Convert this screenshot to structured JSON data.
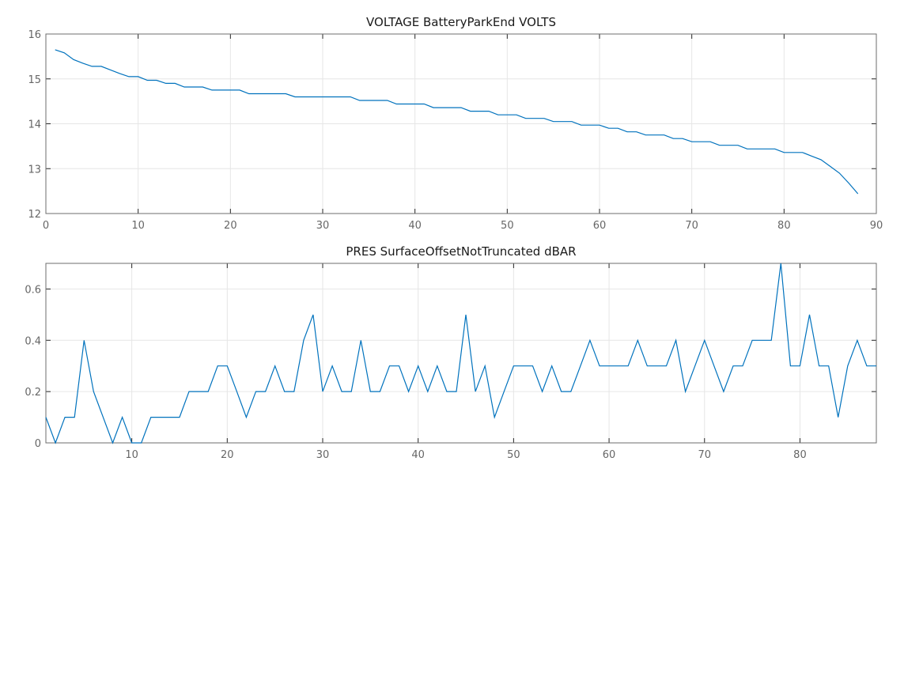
{
  "chart_data": [
    {
      "type": "line",
      "title": "VOLTAGE BatteryParkEnd VOLTS",
      "xlabel": "",
      "ylabel": "",
      "xlim": [
        0,
        90
      ],
      "ylim": [
        12,
        16
      ],
      "xticks": [
        0,
        10,
        20,
        30,
        40,
        50,
        60,
        70,
        80,
        90
      ],
      "yticks": [
        12,
        13,
        14,
        15,
        16
      ],
      "grid": true,
      "color": "#0072bd",
      "x": [
        1,
        2,
        3,
        4,
        5,
        6,
        7,
        8,
        9,
        10,
        11,
        12,
        13,
        14,
        15,
        16,
        17,
        18,
        19,
        20,
        21,
        22,
        23,
        24,
        25,
        26,
        27,
        28,
        29,
        30,
        31,
        32,
        33,
        34,
        35,
        36,
        37,
        38,
        39,
        40,
        41,
        42,
        43,
        44,
        45,
        46,
        47,
        48,
        49,
        50,
        51,
        52,
        53,
        54,
        55,
        56,
        57,
        58,
        59,
        60,
        61,
        62,
        63,
        64,
        65,
        66,
        67,
        68,
        69,
        70,
        71,
        72,
        73,
        74,
        75,
        76,
        77,
        78,
        79,
        80,
        81,
        82,
        83,
        84,
        85,
        86,
        87,
        88
      ],
      "y": [
        15.65,
        15.58,
        15.43,
        15.35,
        15.28,
        15.28,
        15.2,
        15.12,
        15.05,
        15.05,
        14.97,
        14.97,
        14.9,
        14.9,
        14.82,
        14.82,
        14.82,
        14.75,
        14.75,
        14.75,
        14.75,
        14.67,
        14.67,
        14.67,
        14.67,
        14.67,
        14.6,
        14.6,
        14.6,
        14.6,
        14.6,
        14.6,
        14.6,
        14.52,
        14.52,
        14.52,
        14.52,
        14.44,
        14.44,
        14.44,
        14.44,
        14.36,
        14.36,
        14.36,
        14.36,
        14.28,
        14.28,
        14.28,
        14.2,
        14.2,
        14.2,
        14.12,
        14.12,
        14.12,
        14.05,
        14.05,
        14.05,
        13.97,
        13.97,
        13.97,
        13.9,
        13.9,
        13.82,
        13.82,
        13.75,
        13.75,
        13.75,
        13.67,
        13.67,
        13.6,
        13.6,
        13.6,
        13.52,
        13.52,
        13.52,
        13.44,
        13.44,
        13.44,
        13.44,
        13.36,
        13.36,
        13.36,
        13.28,
        13.2,
        13.05,
        12.9,
        12.68,
        12.44
      ]
    },
    {
      "type": "line",
      "title": "PRES SurfaceOffsetNotTruncated dBAR",
      "xlabel": "",
      "ylabel": "",
      "xlim": [
        1,
        88
      ],
      "ylim": [
        0,
        0.7
      ],
      "xticks": [
        10,
        20,
        30,
        40,
        50,
        60,
        70,
        80
      ],
      "yticks": [
        0,
        0.2,
        0.4,
        0.6
      ],
      "grid": true,
      "color": "#0072bd",
      "x": [
        1,
        2,
        3,
        4,
        5,
        6,
        7,
        8,
        9,
        10,
        11,
        12,
        13,
        14,
        15,
        16,
        17,
        18,
        19,
        20,
        21,
        22,
        23,
        24,
        25,
        26,
        27,
        28,
        29,
        30,
        31,
        32,
        33,
        34,
        35,
        36,
        37,
        38,
        39,
        40,
        41,
        42,
        43,
        44,
        45,
        46,
        47,
        48,
        49,
        50,
        51,
        52,
        53,
        54,
        55,
        56,
        57,
        58,
        59,
        60,
        61,
        62,
        63,
        64,
        65,
        66,
        67,
        68,
        69,
        70,
        71,
        72,
        73,
        74,
        75,
        76,
        77,
        78,
        79,
        80,
        81,
        82,
        83,
        84,
        85,
        86,
        87,
        88
      ],
      "y": [
        0.1,
        0,
        0.1,
        0.1,
        0.4,
        0.2,
        0.1,
        0,
        0.1,
        0,
        0,
        0.1,
        0.1,
        0.1,
        0.1,
        0.2,
        0.2,
        0.2,
        0.3,
        0.3,
        0.2,
        0.1,
        0.2,
        0.2,
        0.3,
        0.2,
        0.2,
        0.4,
        0.5,
        0.2,
        0.3,
        0.2,
        0.2,
        0.4,
        0.2,
        0.2,
        0.3,
        0.3,
        0.2,
        0.3,
        0.2,
        0.3,
        0.2,
        0.2,
        0.5,
        0.2,
        0.3,
        0.1,
        0.2,
        0.3,
        0.3,
        0.3,
        0.2,
        0.3,
        0.2,
        0.2,
        0.3,
        0.4,
        0.3,
        0.3,
        0.3,
        0.3,
        0.4,
        0.3,
        0.3,
        0.3,
        0.4,
        0.2,
        0.3,
        0.4,
        0.3,
        0.2,
        0.3,
        0.3,
        0.4,
        0.4,
        0.4,
        0.7,
        0.3,
        0.3,
        0.5,
        0.3,
        0.3,
        0.1,
        0.3,
        0.4,
        0.3,
        0.3
      ]
    }
  ]
}
